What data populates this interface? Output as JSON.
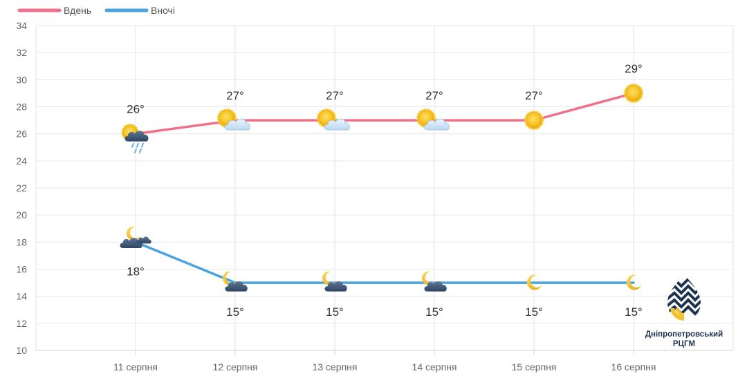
{
  "chart_data": {
    "type": "line",
    "categories": [
      "11 серпня",
      "12 серпня",
      "13 серпня",
      "14 серпня",
      "15 серпня",
      "16 серпня"
    ],
    "series": [
      {
        "name": "Вдень",
        "color": "#f0708a",
        "values": [
          26,
          27,
          27,
          27,
          27,
          29
        ],
        "labels": [
          "26°",
          "27°",
          "27°",
          "27°",
          "27°",
          "29°"
        ],
        "icons": [
          "sun-cloud-rain-icon",
          "sun-cloud-icon",
          "sun-cloud-icon",
          "sun-cloud-icon",
          "sun-icon",
          "sun-icon"
        ]
      },
      {
        "name": "Вночі",
        "color": "#4aa3df",
        "values": [
          18,
          15,
          15,
          15,
          15,
          15
        ],
        "labels": [
          "18°",
          "15°",
          "15°",
          "15°",
          "15°",
          "15°"
        ],
        "icons": [
          "moon-dark-clouds-icon",
          "moon-dark-cloud-icon",
          "moon-dark-cloud-icon",
          "moon-dark-cloud-icon",
          "moon-icon",
          "moon-icon"
        ]
      }
    ],
    "yticks": [
      "10",
      "12",
      "14",
      "16",
      "18",
      "20",
      "22",
      "24",
      "26",
      "28",
      "30",
      "32",
      "34"
    ],
    "ylim": [
      10,
      34
    ],
    "grid": true,
    "legend_position": "top-left"
  },
  "logo": {
    "line1": "Дніпропетровський",
    "line2": "РЦГМ"
  }
}
